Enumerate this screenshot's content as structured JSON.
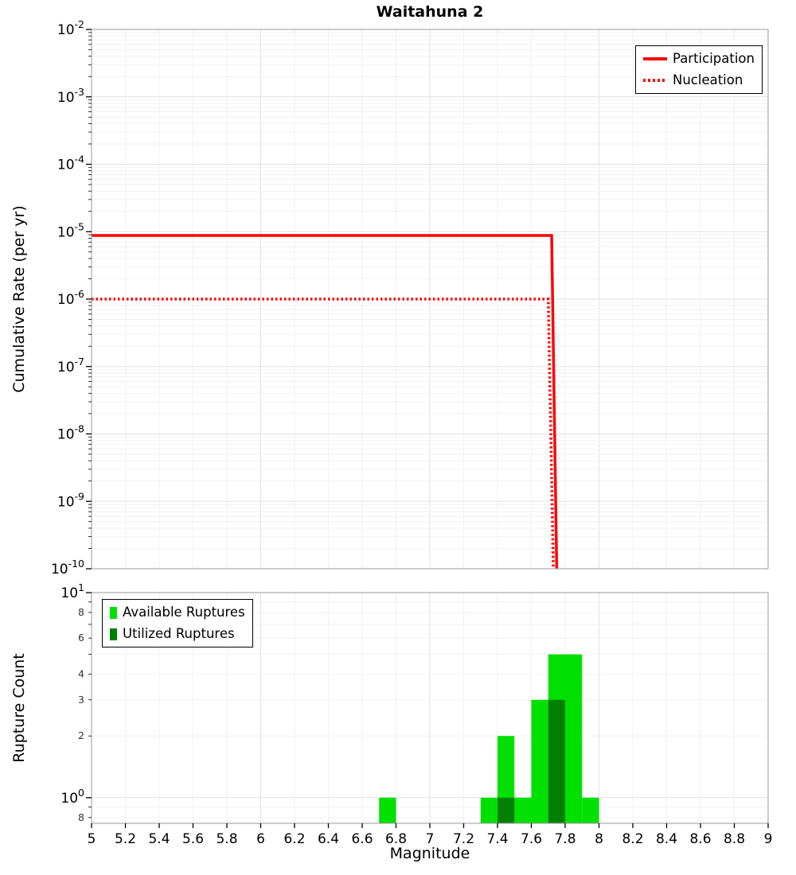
{
  "title": "Waitahuna 2",
  "colors": {
    "participation_line": "#FF0000",
    "nucleation_line": "#FF0000",
    "available_bar": "#00E000",
    "utilized_bar": "#008000",
    "grid_major": "#e2e2e2",
    "grid_minor": "#f2f2f2",
    "frame": "#999999"
  },
  "chart_data": [
    {
      "id": "cumulative-rate-panel",
      "type": "line",
      "title": "Waitahuna 2",
      "ylabel": "Cumulative Rate (per yr)",
      "x_axis": {
        "min": 5,
        "max": 9,
        "tick_step": 0.2
      },
      "y_axis": {
        "scale": "log",
        "max_exp": -2,
        "min_exp": -10,
        "tick_exponents": [
          -2,
          -3,
          -4,
          -5,
          -6,
          -7,
          -8,
          -9,
          -10
        ]
      },
      "legend": {
        "position": "top-right"
      },
      "series": [
        {
          "name": "Participation",
          "style": "solid",
          "color": "#FF0000",
          "points": [
            [
              5,
              8.8e-06
            ],
            [
              7.72,
              8.8e-06
            ],
            [
              7.75,
              1e-10
            ]
          ]
        },
        {
          "name": "Nucleation",
          "style": "dotted",
          "color": "#FF0000",
          "points": [
            [
              5,
              1e-06
            ],
            [
              7.7,
              1e-06
            ],
            [
              7.73,
              1e-10
            ]
          ]
        }
      ]
    },
    {
      "id": "rupture-count-panel",
      "type": "bar",
      "ylabel": "Rupture Count",
      "xlabel": "Magnitude",
      "bin_width": 0.1,
      "x_axis": {
        "min": 5,
        "max": 9,
        "tick_step": 0.2,
        "tick_labels": [
          "5",
          "5.2",
          "5.4",
          "5.6",
          "5.8",
          "6",
          "6.2",
          "6.4",
          "6.6",
          "6.8",
          "7",
          "7.2",
          "7.4",
          "7.6",
          "7.8",
          "8",
          "8.2",
          "8.4",
          "8.6",
          "8.8",
          "9"
        ]
      },
      "y_axis": {
        "scale": "log",
        "min": 0.75,
        "max": 10,
        "major_ticks": [
          {
            "value": 10,
            "base": "10",
            "exp": "1"
          },
          {
            "value": 1,
            "base": "10",
            "exp": "0"
          }
        ],
        "minor_tick_labels": [
          {
            "value": 8,
            "label": "8"
          },
          {
            "value": 6,
            "label": "6"
          },
          {
            "value": 4,
            "label": "4"
          },
          {
            "value": 3,
            "label": "3"
          },
          {
            "value": 2,
            "label": "2"
          },
          {
            "value": 0.8,
            "label": "8"
          }
        ]
      },
      "legend": {
        "position": "top-left"
      },
      "series": [
        {
          "name": "Available Ruptures",
          "color": "#00E000",
          "bins": [
            [
              6.75,
              1
            ],
            [
              7.35,
              1
            ],
            [
              7.45,
              2
            ],
            [
              7.55,
              1
            ],
            [
              7.65,
              3
            ],
            [
              7.75,
              5
            ],
            [
              7.85,
              5
            ],
            [
              7.95,
              1
            ]
          ]
        },
        {
          "name": "Utilized Ruptures",
          "color": "#008000",
          "bins": [
            [
              7.45,
              1
            ],
            [
              7.75,
              3
            ]
          ]
        }
      ]
    }
  ]
}
